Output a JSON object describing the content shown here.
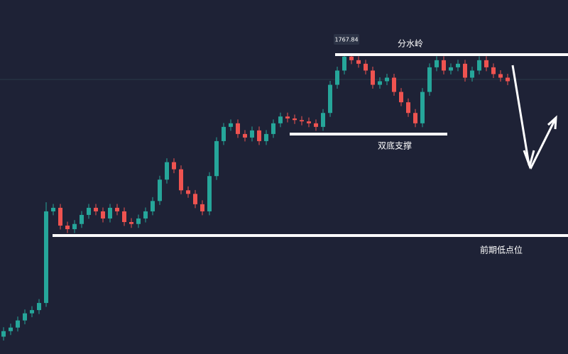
{
  "chart_data": {
    "type": "candlestick",
    "annotations": [
      "分水岭",
      "双底支撑",
      "前期低点位"
    ],
    "up_color": "#26a69a",
    "down_color": "#ef5350",
    "open": [
      1680.5,
      1682.2,
      1683.3,
      1685.5,
      1687.7,
      1688.7,
      1690.9,
      1719.2,
      1720.3,
      1714.8,
      1713.7,
      1715.3,
      1718.1,
      1720.3,
      1719.2,
      1717.0,
      1720.3,
      1719.2,
      1715.9,
      1715.3,
      1717.0,
      1719.2,
      1722.4,
      1729.0,
      1734.4,
      1732.2,
      1725.7,
      1724.6,
      1721.4,
      1719.2,
      1730.1,
      1740.9,
      1745.3,
      1746.4,
      1743.1,
      1742.0,
      1744.2,
      1740.9,
      1743.1,
      1746.4,
      1748.5,
      1747.9,
      1747.4,
      1747.0,
      1746.4,
      1745.3,
      1749.6,
      1758.3,
      1762.7,
      1767.0,
      1765.9,
      1764.8,
      1762.7,
      1758.3,
      1759.4,
      1760.5,
      1756.1,
      1752.9,
      1749.6,
      1746.4,
      1756.1,
      1763.7,
      1765.9,
      1762.7,
      1763.7,
      1764.8,
      1760.5,
      1762.7,
      1765.9,
      1763.7,
      1761.6,
      1760.5
    ],
    "high": [
      1683.4,
      1684.5,
      1686.7,
      1688.9,
      1689.9,
      1692.1,
      1722.0,
      1721.5,
      1721.5,
      1716.0,
      1716.5,
      1719.3,
      1721.5,
      1721.5,
      1720.4,
      1721.5,
      1721.5,
      1720.4,
      1717.1,
      1718.2,
      1720.4,
      1723.6,
      1730.2,
      1735.6,
      1735.6,
      1733.4,
      1726.9,
      1725.8,
      1722.6,
      1731.3,
      1742.1,
      1746.5,
      1747.6,
      1747.6,
      1744.3,
      1745.4,
      1745.4,
      1744.3,
      1747.6,
      1749.7,
      1749.7,
      1749.1,
      1748.6,
      1748.2,
      1747.6,
      1750.8,
      1759.5,
      1763.9,
      1767.84,
      1767.5,
      1767.1,
      1766.0,
      1763.9,
      1760.6,
      1761.7,
      1761.7,
      1757.3,
      1754.1,
      1750.8,
      1757.3,
      1764.9,
      1767.1,
      1767.1,
      1764.9,
      1766.0,
      1766.0,
      1763.9,
      1767.1,
      1767.1,
      1764.9,
      1762.8,
      1761.7
    ],
    "low": [
      1679.3,
      1681.0,
      1682.1,
      1684.3,
      1686.5,
      1687.5,
      1689.7,
      1718.0,
      1713.6,
      1712.5,
      1712.5,
      1714.1,
      1716.9,
      1718.0,
      1715.8,
      1715.8,
      1718.0,
      1714.7,
      1714.1,
      1714.1,
      1715.8,
      1718.0,
      1721.2,
      1727.8,
      1731.0,
      1724.5,
      1723.4,
      1720.2,
      1718.0,
      1718.0,
      1728.9,
      1739.7,
      1744.1,
      1741.9,
      1740.8,
      1740.8,
      1739.7,
      1739.7,
      1741.9,
      1745.2,
      1746.7,
      1746.2,
      1745.8,
      1745.2,
      1744.1,
      1744.1,
      1748.4,
      1757.1,
      1761.5,
      1764.7,
      1763.6,
      1761.5,
      1757.1,
      1757.1,
      1758.2,
      1754.9,
      1751.7,
      1748.4,
      1745.2,
      1745.2,
      1754.9,
      1762.5,
      1761.5,
      1761.5,
      1762.5,
      1759.3,
      1759.3,
      1761.5,
      1762.5,
      1760.4,
      1759.3,
      1758.2
    ],
    "close": [
      1682.2,
      1683.3,
      1685.5,
      1687.7,
      1688.7,
      1690.9,
      1719.2,
      1720.3,
      1714.8,
      1713.7,
      1715.3,
      1718.1,
      1720.3,
      1719.2,
      1717.0,
      1720.3,
      1719.2,
      1715.9,
      1715.3,
      1717.0,
      1719.2,
      1722.4,
      1729.0,
      1734.4,
      1732.2,
      1725.7,
      1724.6,
      1721.4,
      1719.2,
      1730.1,
      1740.9,
      1745.3,
      1746.4,
      1743.1,
      1742.0,
      1744.2,
      1740.9,
      1743.1,
      1746.4,
      1748.5,
      1747.9,
      1747.4,
      1747.0,
      1746.4,
      1745.3,
      1749.6,
      1758.3,
      1762.7,
      1767.0,
      1765.9,
      1764.8,
      1762.7,
      1758.3,
      1759.4,
      1760.5,
      1756.1,
      1752.9,
      1749.6,
      1746.4,
      1756.1,
      1763.7,
      1765.9,
      1762.7,
      1763.7,
      1764.8,
      1760.5,
      1762.7,
      1765.9,
      1763.7,
      1761.6,
      1760.5,
      1759.4
    ]
  }
}
